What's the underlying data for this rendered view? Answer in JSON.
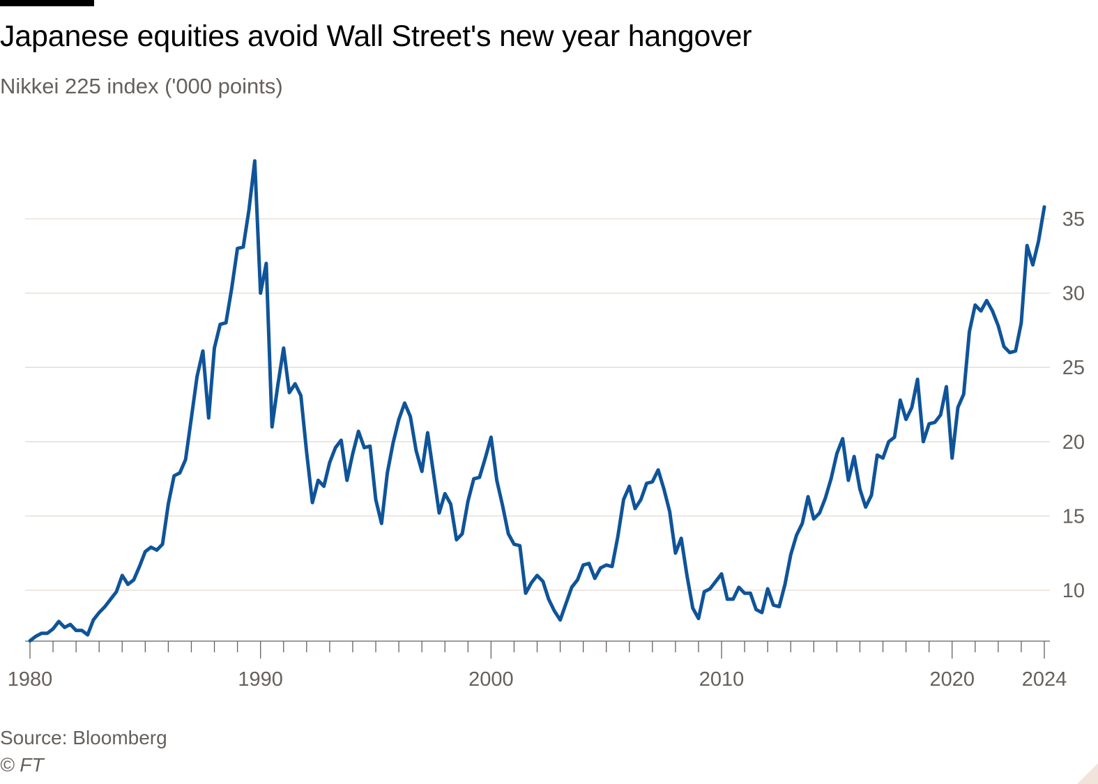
{
  "header": {
    "title": "Japanese equities avoid Wall Street's new year hangover",
    "subtitle": "Nikkei 225 index ('000 points)"
  },
  "footer": {
    "source": "Source: Bloomberg",
    "copyright": "© FT"
  },
  "colors": {
    "line": "#0f5499",
    "grid": "#e6d9ce",
    "axis": "#66605c",
    "text": "#66605c"
  },
  "chart_data": {
    "type": "line",
    "title": "Japanese equities avoid Wall Street's new year hangover",
    "subtitle": "Nikkei 225 index ('000 points)",
    "xlabel": "",
    "ylabel": "",
    "xlim": [
      1980,
      2024
    ],
    "ylim": [
      6.5,
      39
    ],
    "y_axis_position": "right",
    "yticks": [
      10,
      15,
      20,
      25,
      30,
      35
    ],
    "xticks": [
      1980,
      1990,
      2000,
      2010,
      2020,
      2024
    ],
    "grid": "horizontal",
    "legend": "none",
    "series": [
      {
        "x": [
          1980,
          1980.25,
          1980.5,
          1980.75,
          1981,
          1981.25,
          1981.5,
          1981.75,
          1982,
          1982.25,
          1982.5,
          1982.75,
          1983,
          1983.25,
          1983.5,
          1983.75,
          1984,
          1984.25,
          1984.5,
          1984.75,
          1985,
          1985.25,
          1985.5,
          1985.75,
          1986,
          1986.25,
          1986.5,
          1986.75,
          1987,
          1987.25,
          1987.5,
          1987.75,
          1988,
          1988.25,
          1988.5,
          1988.75,
          1989,
          1989.25,
          1989.5,
          1989.75,
          1990,
          1990.25,
          1990.5,
          1990.75,
          1991,
          1991.25,
          1991.5,
          1991.75,
          1992,
          1992.25,
          1992.5,
          1992.75,
          1993,
          1993.25,
          1993.5,
          1993.75,
          1994,
          1994.25,
          1994.5,
          1994.75,
          1995,
          1995.25,
          1995.5,
          1995.75,
          1996,
          1996.25,
          1996.5,
          1996.75,
          1997,
          1997.25,
          1997.5,
          1997.75,
          1998,
          1998.25,
          1998.5,
          1998.75,
          1999,
          1999.25,
          1999.5,
          1999.75,
          2000,
          2000.25,
          2000.5,
          2000.75,
          2001,
          2001.25,
          2001.5,
          2001.75,
          2002,
          2002.25,
          2002.5,
          2002.75,
          2003,
          2003.25,
          2003.5,
          2003.75,
          2004,
          2004.25,
          2004.5,
          2004.75,
          2005,
          2005.25,
          2005.5,
          2005.75,
          2006,
          2006.25,
          2006.5,
          2006.75,
          2007,
          2007.25,
          2007.5,
          2007.75,
          2008,
          2008.25,
          2008.5,
          2008.75,
          2009,
          2009.25,
          2009.5,
          2009.75,
          2010,
          2010.25,
          2010.5,
          2010.75,
          2011,
          2011.25,
          2011.5,
          2011.75,
          2012,
          2012.25,
          2012.5,
          2012.75,
          2013,
          2013.25,
          2013.5,
          2013.75,
          2014,
          2014.25,
          2014.5,
          2014.75,
          2015,
          2015.25,
          2015.5,
          2015.75,
          2016,
          2016.25,
          2016.5,
          2016.75,
          2017,
          2017.25,
          2017.5,
          2017.75,
          2018,
          2018.25,
          2018.5,
          2018.75,
          2019,
          2019.25,
          2019.5,
          2019.75,
          2020,
          2020.25,
          2020.5,
          2020.75,
          2021,
          2021.25,
          2021.5,
          2021.75,
          2022,
          2022.25,
          2022.5,
          2022.75,
          2023,
          2023.25,
          2023.5,
          2023.75,
          2024
        ],
        "values": [
          6.6,
          6.9,
          7.1,
          7.1,
          7.4,
          7.9,
          7.5,
          7.7,
          7.3,
          7.3,
          7.0,
          8.0,
          8.5,
          8.9,
          9.4,
          9.9,
          11.0,
          10.4,
          10.7,
          11.6,
          12.6,
          12.9,
          12.7,
          13.1,
          15.8,
          17.7,
          17.9,
          18.8,
          21.6,
          24.4,
          26.1,
          21.6,
          26.3,
          27.9,
          28.0,
          30.3,
          33.0,
          33.1,
          35.6,
          38.9,
          30.0,
          32.0,
          21.0,
          23.8,
          26.3,
          23.3,
          23.9,
          23.1,
          19.3,
          15.9,
          17.4,
          17.0,
          18.6,
          19.6,
          20.1,
          17.4,
          19.2,
          20.7,
          19.6,
          19.7,
          16.1,
          14.5,
          17.9,
          19.9,
          21.5,
          22.6,
          21.7,
          19.4,
          18.0,
          20.6,
          17.9,
          15.2,
          16.5,
          15.8,
          13.4,
          13.8,
          16.0,
          17.5,
          17.6,
          18.9,
          20.3,
          17.4,
          15.7,
          13.8,
          13.1,
          13.0,
          9.8,
          10.5,
          11.0,
          10.6,
          9.4,
          8.6,
          8.0,
          9.1,
          10.2,
          10.7,
          11.7,
          11.8,
          10.8,
          11.5,
          11.7,
          11.6,
          13.6,
          16.1,
          17.0,
          15.5,
          16.1,
          17.2,
          17.3,
          18.1,
          16.8,
          15.3,
          12.5,
          13.5,
          11.0,
          8.8,
          8.1,
          9.9,
          10.1,
          10.6,
          11.1,
          9.4,
          9.4,
          10.2,
          9.8,
          9.8,
          8.7,
          8.5,
          10.1,
          9.0,
          8.9,
          10.4,
          12.4,
          13.7,
          14.5,
          16.3,
          14.8,
          15.2,
          16.2,
          17.5,
          19.2,
          20.2,
          17.4,
          19.0,
          16.8,
          15.6,
          16.4,
          19.1,
          18.9,
          20.0,
          20.3,
          22.8,
          21.5,
          22.3,
          24.2,
          20.0,
          21.2,
          21.3,
          21.8,
          23.7,
          18.9,
          22.3,
          23.2,
          27.4,
          29.2,
          28.8,
          29.5,
          28.8,
          27.8,
          26.4,
          26.0,
          26.1,
          28.0,
          33.2,
          31.9,
          33.5,
          35.8
        ]
      }
    ]
  }
}
